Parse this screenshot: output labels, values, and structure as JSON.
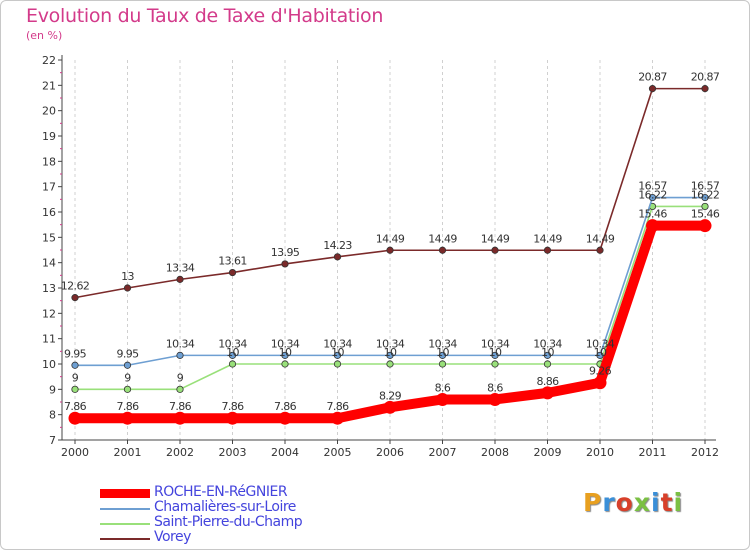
{
  "title": "Evolution du Taux de Taxe d'Habitation",
  "subtitle": "(en %)",
  "logo": {
    "text": "Proxiti",
    "letter_colors": [
      "#e8a020",
      "#3a8fd8",
      "#d8402a",
      "#7bc043",
      "#3a8fd8",
      "#d8402a",
      "#7bc043"
    ]
  },
  "chart_data": {
    "type": "line",
    "x": [
      2000,
      2001,
      2002,
      2003,
      2004,
      2005,
      2006,
      2007,
      2008,
      2009,
      2010,
      2011,
      2012
    ],
    "ylim": [
      7,
      22
    ],
    "yticks": [
      7,
      8,
      9,
      10,
      11,
      12,
      13,
      14,
      15,
      16,
      17,
      18,
      19,
      20,
      21,
      22
    ],
    "grid": "vertical dashed",
    "legend_position": "bottom-left",
    "series": [
      {
        "name": "ROCHE-EN-RéGNIER",
        "color": "#ff0000",
        "values": [
          7.86,
          7.86,
          7.86,
          7.86,
          7.86,
          7.86,
          8.29,
          8.6,
          8.6,
          8.86,
          9.26,
          15.46,
          15.46
        ],
        "labels": [
          "7.86",
          "7.86",
          "7.86",
          "7.86",
          "7.86",
          "7.86",
          "8.29",
          "8.6",
          "8.6",
          "8.86",
          "9.26",
          "15.46",
          "15.46"
        ]
      },
      {
        "name": "Chamalières-sur-Loire",
        "color": "#6e9fd2",
        "values": [
          9.95,
          9.95,
          10.34,
          10.34,
          10.34,
          10.34,
          10.34,
          10.34,
          10.34,
          10.34,
          10.34,
          16.57,
          16.57
        ],
        "labels": [
          "9.95",
          "9.95",
          "10.34",
          "10.34",
          "10.34",
          "10.34",
          "10.34",
          "10.34",
          "10.34",
          "10.34",
          "10.34",
          "16.57",
          "16.57"
        ]
      },
      {
        "name": "Saint-Pierre-du-Champ",
        "color": "#99e07a",
        "values": [
          9,
          9,
          9,
          10,
          10,
          10,
          10,
          10,
          10,
          10,
          10,
          16.22,
          16.22
        ],
        "labels": [
          "9",
          "9",
          "9",
          "10",
          "10",
          "10",
          "10",
          "10",
          "10",
          "10",
          "10",
          "16.22",
          "16.22"
        ]
      },
      {
        "name": "Vorey",
        "color": "#7b2a2a",
        "values": [
          12.62,
          13,
          13.34,
          13.61,
          13.95,
          14.23,
          14.49,
          14.49,
          14.49,
          14.49,
          14.49,
          20.87,
          20.87
        ],
        "labels": [
          "12.62",
          "13",
          "13.34",
          "13.61",
          "13.95",
          "14.23",
          "14.49",
          "14.49",
          "14.49",
          "14.49",
          "14.49",
          "20.87",
          "20.87"
        ]
      }
    ]
  }
}
